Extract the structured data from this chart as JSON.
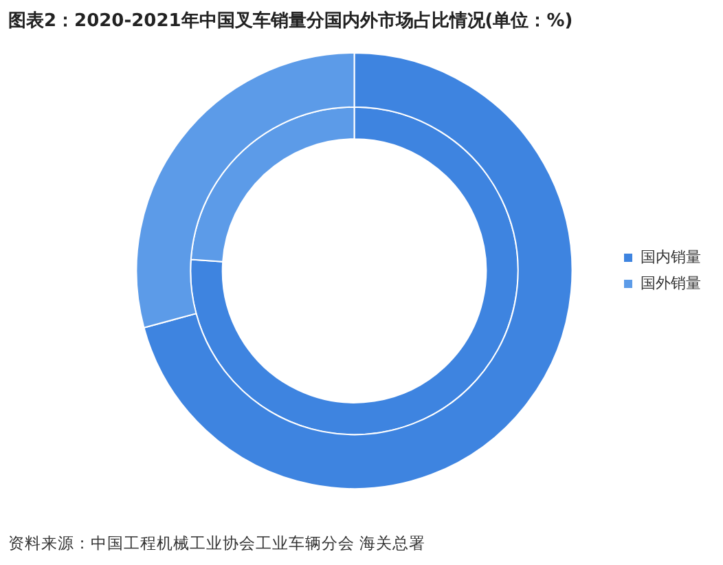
{
  "chart_data": {
    "type": "donut",
    "title": "图表2：2020-2021年中国叉车销量分国内外市场占比情况(单位：%)",
    "categories": [
      "国内销量",
      "国外销量"
    ],
    "colors": [
      "#3e84e0",
      "#5c9be8"
    ],
    "series": [
      {
        "values": [
          76.1,
          23.9
        ]
      },
      {
        "values": [
          70.8,
          29.2
        ]
      }
    ],
    "legend": "right",
    "annotations": [
      "资料来源：中国工程机械工业协会工业车辆分会 海关总署"
    ]
  }
}
